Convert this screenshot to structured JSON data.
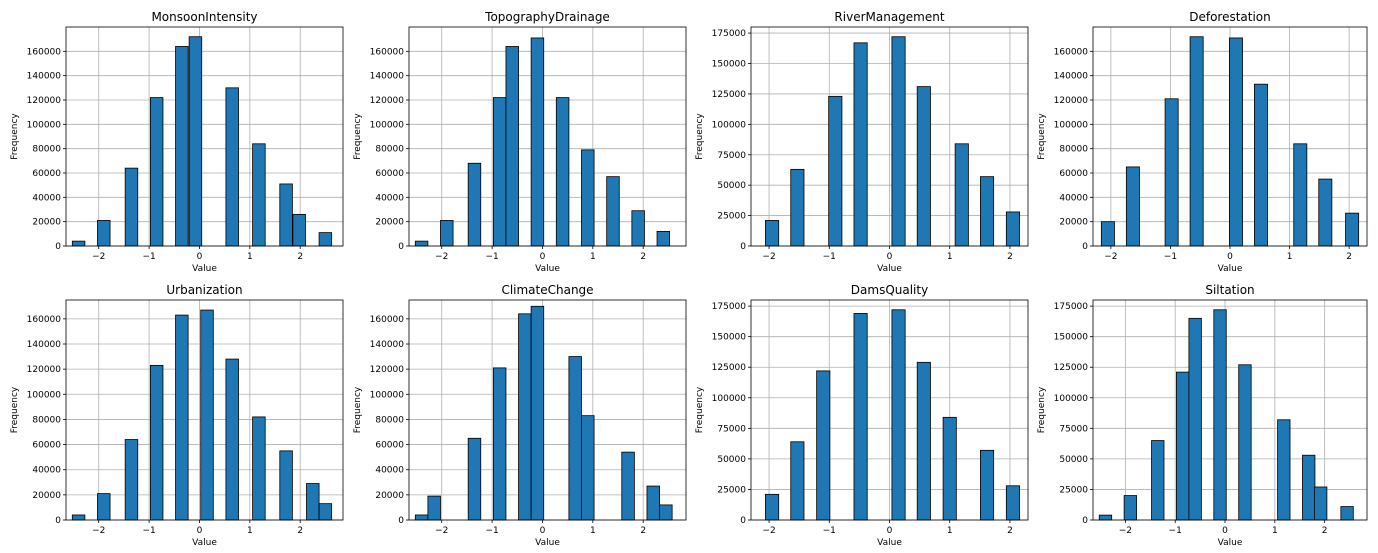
{
  "chart_data": [
    {
      "type": "bar",
      "title": "MonsoonIntensity",
      "xlabel": "Value",
      "ylabel": "Frequency",
      "xlim": [
        -2.65,
        2.85
      ],
      "ylim": [
        0,
        180000
      ],
      "xticks": [
        -2,
        -1,
        0,
        1,
        2
      ],
      "yticks": [
        0,
        20000,
        40000,
        60000,
        80000,
        100000,
        120000,
        140000,
        160000
      ],
      "grid": true,
      "bin_width": 0.25,
      "bins": [
        {
          "x": -2.4,
          "value": 4000
        },
        {
          "x": -1.9,
          "value": 21000
        },
        {
          "x": -1.35,
          "value": 64000
        },
        {
          "x": -0.85,
          "value": 122000
        },
        {
          "x": -0.35,
          "value": 164000
        },
        {
          "x": -0.08,
          "value": 172000
        },
        {
          "x": 0.65,
          "value": 130000
        },
        {
          "x": 1.18,
          "value": 84000
        },
        {
          "x": 1.72,
          "value": 51000
        },
        {
          "x": 1.98,
          "value": 26000
        },
        {
          "x": 2.5,
          "value": 11000
        }
      ]
    },
    {
      "type": "bar",
      "title": "TopographyDrainage",
      "xlabel": "Value",
      "ylabel": "Frequency",
      "xlim": [
        -2.65,
        2.85
      ],
      "ylim": [
        0,
        180000
      ],
      "xticks": [
        -2,
        -1,
        0,
        1,
        2
      ],
      "yticks": [
        0,
        20000,
        40000,
        60000,
        80000,
        100000,
        120000,
        140000,
        160000
      ],
      "grid": true,
      "bin_width": 0.25,
      "bins": [
        {
          "x": -2.4,
          "value": 4000
        },
        {
          "x": -1.9,
          "value": 21000
        },
        {
          "x": -1.35,
          "value": 68000
        },
        {
          "x": -0.85,
          "value": 122000
        },
        {
          "x": -0.6,
          "value": 164000
        },
        {
          "x": -0.1,
          "value": 171000
        },
        {
          "x": 0.4,
          "value": 122000
        },
        {
          "x": 0.9,
          "value": 79000
        },
        {
          "x": 1.4,
          "value": 57000
        },
        {
          "x": 1.9,
          "value": 29000
        },
        {
          "x": 2.4,
          "value": 12000
        }
      ]
    },
    {
      "type": "bar",
      "title": "RiverManagement",
      "xlabel": "Value",
      "ylabel": "Frequency",
      "xlim": [
        -2.3,
        2.3
      ],
      "ylim": [
        0,
        180000
      ],
      "xticks": [
        -2,
        -1,
        0,
        1,
        2
      ],
      "yticks": [
        0,
        25000,
        50000,
        75000,
        100000,
        125000,
        150000,
        175000
      ],
      "grid": true,
      "bin_width": 0.22,
      "bins": [
        {
          "x": -1.95,
          "value": 21000
        },
        {
          "x": -1.53,
          "value": 63000
        },
        {
          "x": -0.9,
          "value": 123000
        },
        {
          "x": -0.48,
          "value": 167000
        },
        {
          "x": 0.15,
          "value": 172000
        },
        {
          "x": 0.57,
          "value": 131000
        },
        {
          "x": 1.2,
          "value": 84000
        },
        {
          "x": 1.62,
          "value": 57000
        },
        {
          "x": 2.05,
          "value": 28000
        }
      ]
    },
    {
      "type": "bar",
      "title": "Deforestation",
      "xlabel": "Value",
      "ylabel": "Frequency",
      "xlim": [
        -2.3,
        2.3
      ],
      "ylim": [
        0,
        180000
      ],
      "xticks": [
        -2,
        -1,
        0,
        1,
        2
      ],
      "yticks": [
        0,
        20000,
        40000,
        60000,
        80000,
        100000,
        120000,
        140000,
        160000
      ],
      "grid": true,
      "bin_width": 0.22,
      "bins": [
        {
          "x": -2.05,
          "value": 20000
        },
        {
          "x": -1.63,
          "value": 65000
        },
        {
          "x": -0.98,
          "value": 121000
        },
        {
          "x": -0.56,
          "value": 172000
        },
        {
          "x": 0.1,
          "value": 171000
        },
        {
          "x": 0.52,
          "value": 133000
        },
        {
          "x": 1.18,
          "value": 84000
        },
        {
          "x": 1.6,
          "value": 55000
        },
        {
          "x": 2.05,
          "value": 27000
        }
      ]
    },
    {
      "type": "bar",
      "title": "Urbanization",
      "xlabel": "Value",
      "ylabel": "Frequency",
      "xlim": [
        -2.65,
        2.85
      ],
      "ylim": [
        0,
        175000
      ],
      "xticks": [
        -2,
        -1,
        0,
        1,
        2
      ],
      "yticks": [
        0,
        20000,
        40000,
        60000,
        80000,
        100000,
        120000,
        140000,
        160000
      ],
      "grid": true,
      "bin_width": 0.25,
      "bins": [
        {
          "x": -2.4,
          "value": 4000
        },
        {
          "x": -1.9,
          "value": 21000
        },
        {
          "x": -1.35,
          "value": 64000
        },
        {
          "x": -0.85,
          "value": 123000
        },
        {
          "x": -0.35,
          "value": 163000
        },
        {
          "x": 0.15,
          "value": 167000
        },
        {
          "x": 0.65,
          "value": 128000
        },
        {
          "x": 1.18,
          "value": 82000
        },
        {
          "x": 1.72,
          "value": 55000
        },
        {
          "x": 2.25,
          "value": 29000
        },
        {
          "x": 2.5,
          "value": 13000
        }
      ]
    },
    {
      "type": "bar",
      "title": "ClimateChange",
      "xlabel": "Value",
      "ylabel": "Frequency",
      "xlim": [
        -2.65,
        2.85
      ],
      "ylim": [
        0,
        175000
      ],
      "xticks": [
        -2,
        -1,
        0,
        1,
        2
      ],
      "yticks": [
        0,
        20000,
        40000,
        60000,
        80000,
        100000,
        120000,
        140000,
        160000
      ],
      "grid": true,
      "bin_width": 0.25,
      "bins": [
        {
          "x": -2.4,
          "value": 4000
        },
        {
          "x": -2.15,
          "value": 19000
        },
        {
          "x": -1.35,
          "value": 65000
        },
        {
          "x": -0.85,
          "value": 121000
        },
        {
          "x": -0.35,
          "value": 164000
        },
        {
          "x": -0.1,
          "value": 170000
        },
        {
          "x": 0.65,
          "value": 130000
        },
        {
          "x": 0.9,
          "value": 83000
        },
        {
          "x": 1.7,
          "value": 54000
        },
        {
          "x": 2.2,
          "value": 27000
        },
        {
          "x": 2.45,
          "value": 12000
        }
      ]
    },
    {
      "type": "bar",
      "title": "DamsQuality",
      "xlabel": "Value",
      "ylabel": "Frequency",
      "xlim": [
        -2.3,
        2.3
      ],
      "ylim": [
        0,
        180000
      ],
      "xticks": [
        -2,
        -1,
        0,
        1,
        2
      ],
      "yticks": [
        0,
        25000,
        50000,
        75000,
        100000,
        125000,
        150000,
        175000
      ],
      "grid": true,
      "bin_width": 0.22,
      "bins": [
        {
          "x": -1.95,
          "value": 21000
        },
        {
          "x": -1.53,
          "value": 64000
        },
        {
          "x": -1.1,
          "value": 122000
        },
        {
          "x": -0.48,
          "value": 169000
        },
        {
          "x": 0.15,
          "value": 172000
        },
        {
          "x": 0.57,
          "value": 129000
        },
        {
          "x": 1.0,
          "value": 84000
        },
        {
          "x": 1.62,
          "value": 57000
        },
        {
          "x": 2.05,
          "value": 28000
        }
      ]
    },
    {
      "type": "bar",
      "title": "Siltation",
      "xlabel": "Value",
      "ylabel": "Frequency",
      "xlim": [
        -2.65,
        2.85
      ],
      "ylim": [
        0,
        180000
      ],
      "xticks": [
        -2,
        -1,
        0,
        1,
        2
      ],
      "yticks": [
        0,
        25000,
        50000,
        75000,
        100000,
        125000,
        150000,
        175000
      ],
      "grid": true,
      "bin_width": 0.25,
      "bins": [
        {
          "x": -2.4,
          "value": 4000
        },
        {
          "x": -1.9,
          "value": 20000
        },
        {
          "x": -1.35,
          "value": 65000
        },
        {
          "x": -0.85,
          "value": 121000
        },
        {
          "x": -0.6,
          "value": 165000
        },
        {
          "x": -0.1,
          "value": 172000
        },
        {
          "x": 0.4,
          "value": 127000
        },
        {
          "x": 1.18,
          "value": 82000
        },
        {
          "x": 1.68,
          "value": 53000
        },
        {
          "x": 1.92,
          "value": 27000
        },
        {
          "x": 2.45,
          "value": 11000
        }
      ]
    }
  ],
  "colors": {
    "bar_fill": "#1f77b4",
    "bar_edge": "#000000",
    "grid": "#b0b0b0"
  }
}
